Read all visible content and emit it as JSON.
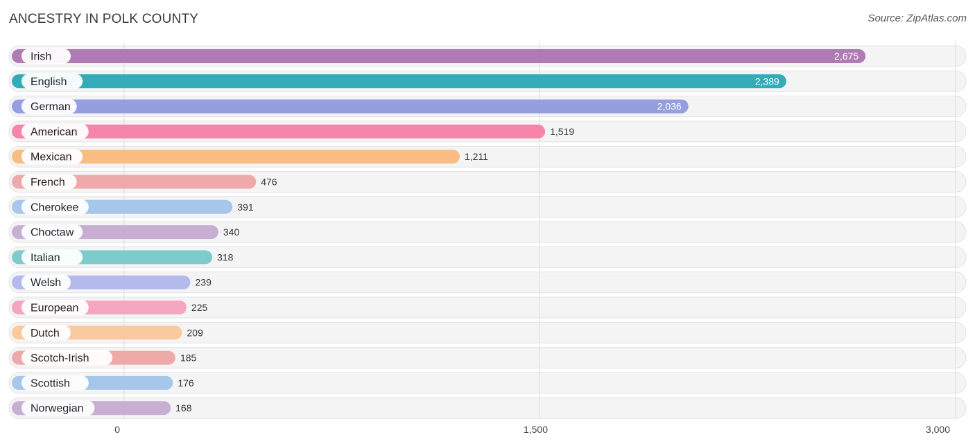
{
  "title": "ANCESTRY IN POLK COUNTY",
  "source": "Source: ZipAtlas.com",
  "chart_data": {
    "type": "bar",
    "orientation": "horizontal",
    "title": "ANCESTRY IN POLK COUNTY",
    "categories": [
      "Irish",
      "English",
      "German",
      "American",
      "Mexican",
      "French",
      "Cherokee",
      "Choctaw",
      "Italian",
      "Welsh",
      "European",
      "Dutch",
      "Scotch-Irish",
      "Scottish",
      "Norwegian"
    ],
    "values": [
      2675,
      2389,
      2036,
      1519,
      1211,
      476,
      391,
      340,
      318,
      239,
      225,
      209,
      185,
      176,
      168
    ],
    "value_labels": [
      "2,675",
      "2,389",
      "2,036",
      "1,519",
      "1,211",
      "476",
      "391",
      "340",
      "318",
      "239",
      "225",
      "209",
      "185",
      "176",
      "168"
    ],
    "colors": [
      "#b07ab4",
      "#33acba",
      "#959fe0",
      "#f585a9",
      "#f9bd84",
      "#eeaaa8",
      "#a6c6ea",
      "#c8aed3",
      "#7ecbcc",
      "#b4bbec",
      "#f3a5c2",
      "#fac99e",
      "#eeaaa8",
      "#a6c6ea",
      "#c8aed3"
    ],
    "xlim": [
      0,
      3000
    ],
    "ticks": [
      0,
      1500,
      3000
    ],
    "tick_labels": [
      "0",
      "1,500",
      "3,000"
    ],
    "grid": true
  }
}
